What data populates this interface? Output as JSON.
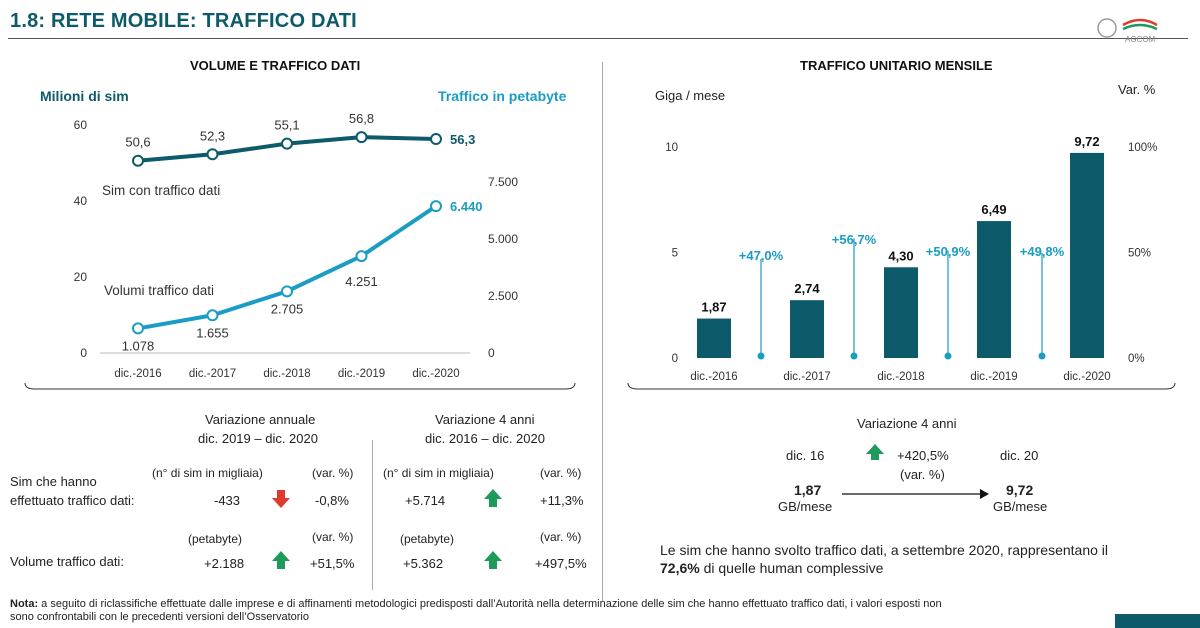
{
  "header": {
    "title": "1.8: RETE MOBILE: TRAFFICO DATI",
    "logo_text": "AGCOM"
  },
  "left_chart": {
    "title": "VOLUME E TRAFFICO DATI",
    "left_axis_label": "Milioni di sim",
    "right_axis_label": "Traffico in petabyte",
    "series1_label": "Sim con traffico dati",
    "series2_label": "Volumi traffico dati"
  },
  "right_chart": {
    "title": "TRAFFICO UNITARIO MENSILE",
    "left_axis_label": "Giga / mese",
    "right_axis_label": "Var. %"
  },
  "chart_data": [
    {
      "type": "line",
      "title": "VOLUME E TRAFFICO DATI",
      "categories": [
        "dic.-2016",
        "dic.-2017",
        "dic.-2018",
        "dic.-2019",
        "dic.-2020"
      ],
      "y_ticks": [
        "0",
        "20",
        "40",
        "60"
      ],
      "y2_ticks": [
        "0",
        "2.500",
        "5.000",
        "7.500"
      ],
      "ylim": [
        0,
        60
      ],
      "y2lim": [
        0,
        10000
      ],
      "series": [
        {
          "name": "Sim con traffico dati",
          "axis": "left",
          "values": [
            50.6,
            52.3,
            55.1,
            56.8,
            56.3
          ],
          "labels": [
            "50,6",
            "52,3",
            "55,1",
            "56,8",
            "56,3"
          ],
          "color": "#0d5a6b"
        },
        {
          "name": "Volumi traffico dati",
          "axis": "right",
          "values": [
            1078,
            1655,
            2705,
            4251,
            6440
          ],
          "labels": [
            "1.078",
            "1.655",
            "2.705",
            "4.251",
            "6.440"
          ],
          "color": "#1a9cc4"
        }
      ]
    },
    {
      "type": "bar",
      "title": "TRAFFICO UNITARIO MENSILE",
      "categories": [
        "dic.-2016",
        "dic.-2017",
        "dic.-2018",
        "dic.-2019",
        "dic.-2020"
      ],
      "values": [
        1.87,
        2.74,
        4.3,
        6.49,
        9.72
      ],
      "labels": [
        "1,87",
        "2,74",
        "4,30",
        "6,49",
        "9,72"
      ],
      "ylim": [
        0,
        10
      ],
      "y_ticks": [
        "0",
        "5",
        "10"
      ],
      "y2_ticks": [
        "0%",
        "50%",
        "100%"
      ],
      "y2lim": [
        0,
        100
      ],
      "var_values": [
        47.0,
        56.7,
        50.9,
        49.8
      ],
      "var_labels": [
        "+47,0%",
        "+56,7%",
        "+50,9%",
        "+49,8%"
      ],
      "bar_color": "#0d5a6b",
      "var_color": "#1a9cc4"
    }
  ],
  "variation_table": {
    "annual_title_1": "Variazione annuale",
    "annual_title_2": "dic. 2019 – dic. 2020",
    "four_year_title_1": "Variazione 4 anni",
    "four_year_title_2": "dic. 2016 – dic. 2020",
    "row1_label_1": "Sim che hanno",
    "row1_label_2": "effettuato traffico dati:",
    "row1_unit": "(n° di  sim in migliaia)",
    "row1_unit_b": "(n° di  sim in migliaia)",
    "var_unit": "(var. %)",
    "row1_annual_value": "-433",
    "row1_annual_pct": "-0,8%",
    "row1_4y_value": "+5.714",
    "row1_4y_pct": "+11,3%",
    "row2_label": "Volume traffico dati:",
    "row2_unit": "(petabyte)",
    "row2_annual_value": "+2.188",
    "row2_annual_pct": "+51,5%",
    "row2_4y_value": "+5.362",
    "row2_4y_pct": "+497,5%"
  },
  "right_summary": {
    "title": "Variazione 4 anni",
    "from_label": "dic. 16",
    "pct": "+420,5%",
    "pct_note": "(var. %)",
    "to_label": "dic. 20",
    "from_value": "1,87",
    "from_unit": "GB/mese",
    "to_value": "9,72",
    "to_unit": "GB/mese",
    "note_1": "Le sim che hanno svolto traffico dati, a settembre 2020, rappresentano il",
    "note_2_bold": "72,6%",
    "note_2_rest": " di quelle human complessive"
  },
  "footer": {
    "nota_label": "Nota:",
    "nota_text_1": " a seguito di riclassifiche effettuate dalle imprese e di affinamenti metodologici predisposti dall’Autorità nella determinazione delle sim che hanno effettuato traffico dati, i valori esposti non",
    "nota_text_2": "sono confrontabili con le precedenti versioni dell’Osservatorio"
  },
  "colors": {
    "teal": "#0d5a6b",
    "cyan": "#1a9cc4",
    "red": "#e03a2f",
    "green": "#1e9a5a"
  }
}
